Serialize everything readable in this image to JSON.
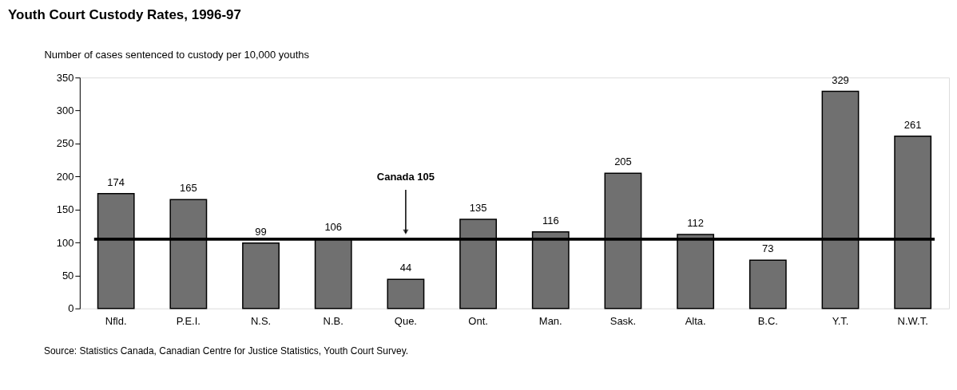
{
  "chart_data": {
    "type": "bar",
    "title": "Youth Court Custody Rates, 1996-97",
    "ylabel": "Number of cases sentenced to custody per 10,000 youths",
    "categories": [
      "Nfld.",
      "P.E.I.",
      "N.S.",
      "N.B.",
      "Que.",
      "Ont.",
      "Man.",
      "Sask.",
      "Alta.",
      "B.C.",
      "Y.T.",
      "N.W.T."
    ],
    "values": [
      174,
      165,
      99,
      106,
      44,
      135,
      116,
      205,
      112,
      73,
      329,
      261
    ],
    "color": "#707070",
    "data_labels": true,
    "ylim": [
      0,
      350
    ],
    "yticks": [
      0,
      50,
      100,
      150,
      200,
      250,
      300,
      350
    ],
    "grid": false,
    "ref_lines": [
      {
        "axis": "y",
        "value": 105,
        "label": "Canada  105",
        "color": "#000000"
      }
    ],
    "annotations": [
      "Source:  Statistics Canada, Canadian Centre for Justice Statistics, Youth Court Survey."
    ]
  }
}
